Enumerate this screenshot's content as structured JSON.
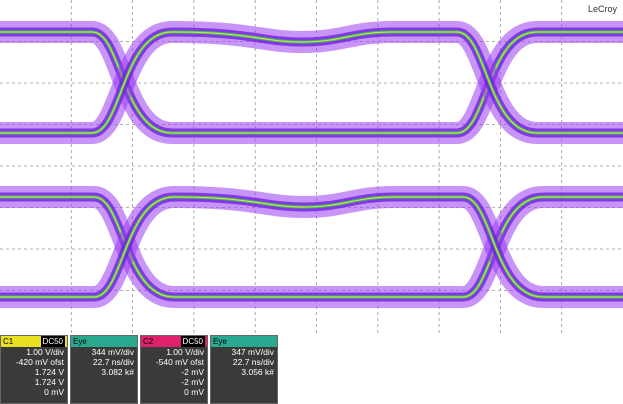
{
  "brand": "LeCroy",
  "panels": [
    {
      "label": "C1",
      "coupling": "DC50",
      "lines": [
        "1.00 V/div",
        "-420 mV ofst",
        "1.724 V",
        "1.724 V",
        "0 mV"
      ],
      "color": "#e8e020"
    },
    {
      "label": "Eye",
      "lines": [
        "344 mV/div",
        "22.7 ns/div",
        "3.082 k#"
      ],
      "color": "#2aa890"
    },
    {
      "label": "C2",
      "coupling": "DC50",
      "lines": [
        "1.00 V/div",
        "-540 mV ofst",
        "-2 mV",
        "-2 mV",
        "0 mV"
      ],
      "color": "#e0206a"
    },
    {
      "label": "Eye",
      "lines": [
        "347 mV/div",
        "22.7 ns/div",
        "3.056 k#"
      ],
      "color": "#2aa890"
    }
  ]
}
